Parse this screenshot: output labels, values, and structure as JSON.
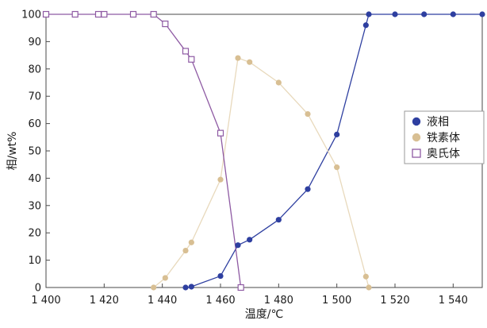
{
  "chart_data": {
    "type": "line",
    "title": "",
    "xlabel": "温度/℃",
    "ylabel": "相/wt%",
    "xlim": [
      1400,
      1550
    ],
    "ylim": [
      0,
      100
    ],
    "xticks": [
      1400,
      1420,
      1440,
      1460,
      1480,
      1500,
      1520,
      1540
    ],
    "xtick_labels": [
      "1 400",
      "1 420",
      "1 440",
      "1 460",
      "1 480",
      "1 500",
      "1 520",
      "1 540"
    ],
    "yticks": [
      0,
      10,
      20,
      30,
      40,
      50,
      60,
      70,
      80,
      90,
      100
    ],
    "ytick_labels": [
      "0",
      "10",
      "20",
      "30",
      "40",
      "50",
      "60",
      "70",
      "80",
      "90",
      "100"
    ],
    "grid": false,
    "legend_position": "right",
    "series": [
      {
        "name": "液相",
        "marker": "circle",
        "color": "#2e3fa0",
        "line_color": "#2e3fa0",
        "x": [
          1448,
          1450,
          1460,
          1466,
          1470,
          1480,
          1490,
          1500,
          1510,
          1511,
          1520,
          1530,
          1540,
          1550
        ],
        "y": [
          0,
          0.3,
          4.2,
          15.5,
          17.5,
          24.8,
          36,
          56,
          96,
          100,
          100,
          100,
          100,
          100
        ]
      },
      {
        "name": "铁素体",
        "marker": "circle",
        "color": "#d8bf93",
        "line_color": "#e8d9bc",
        "x": [
          1437,
          1441,
          1448,
          1450,
          1460,
          1466,
          1470,
          1480,
          1490,
          1500,
          1510,
          1511
        ],
        "y": [
          0,
          3.5,
          13.5,
          16.5,
          39.5,
          84,
          82.5,
          75,
          63.5,
          44,
          4,
          0
        ]
      },
      {
        "name": "奥氏体",
        "marker": "square-open",
        "color": "#8e5aa3",
        "line_color": "#8e5aa3",
        "x": [
          1400,
          1410,
          1418,
          1420,
          1430,
          1437,
          1441,
          1448,
          1450,
          1460,
          1467
        ],
        "y": [
          100,
          100,
          100,
          100,
          100,
          100,
          96.5,
          86.5,
          83.5,
          56.5,
          0
        ]
      }
    ]
  }
}
